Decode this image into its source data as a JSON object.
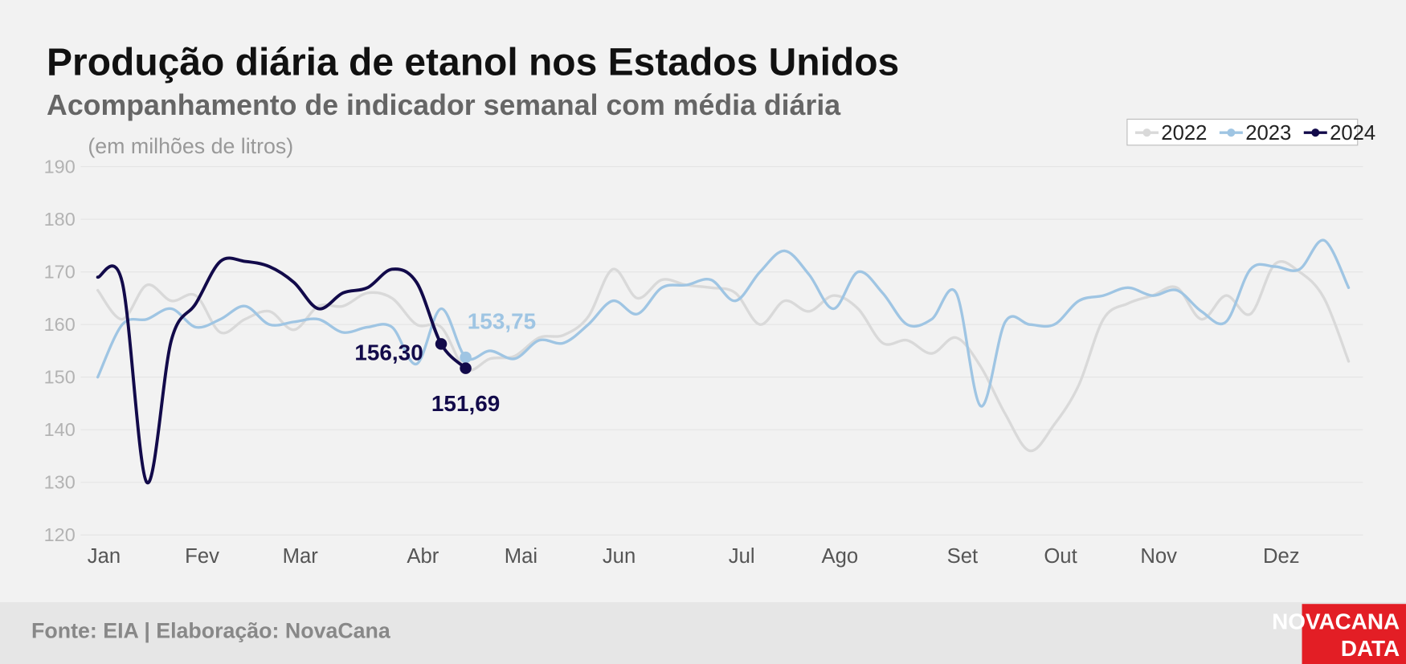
{
  "chart_data": {
    "type": "line",
    "title": "Produção diária de etanol nos Estados Unidos",
    "subtitle": "Acompanhamento de indicador semanal com média diária",
    "y_axis_label": "(em milhões de litros)",
    "source": "Fonte: EIA | Elaboração: NovaCana",
    "logo": [
      "NOVACANA",
      "DATA"
    ],
    "x": [
      1,
      2,
      3,
      4,
      5,
      6,
      7,
      8,
      9,
      10,
      11,
      12,
      13,
      14,
      15,
      16,
      17,
      18,
      19,
      20,
      21,
      22,
      23,
      24,
      25,
      26,
      27,
      28,
      29,
      30,
      31,
      32,
      33,
      34,
      35,
      36,
      37,
      38,
      39,
      40,
      41,
      42,
      43,
      44,
      45,
      46,
      47,
      48,
      49,
      50,
      51,
      52
    ],
    "xlim": [
      1,
      52
    ],
    "xticks": [
      {
        "value": 1,
        "label": "Jan"
      },
      {
        "value": 5,
        "label": "Fev"
      },
      {
        "value": 9,
        "label": "Mar"
      },
      {
        "value": 14,
        "label": "Abr"
      },
      {
        "value": 18,
        "label": "Mai"
      },
      {
        "value": 22,
        "label": "Jun"
      },
      {
        "value": 27,
        "label": "Jul"
      },
      {
        "value": 31,
        "label": "Ago"
      },
      {
        "value": 36,
        "label": "Set"
      },
      {
        "value": 40,
        "label": "Out"
      },
      {
        "value": 44,
        "label": "Nov"
      },
      {
        "value": 49,
        "label": "Dez"
      }
    ],
    "ylim": [
      120,
      190
    ],
    "yticks": [
      120,
      130,
      140,
      150,
      160,
      170,
      180,
      190
    ],
    "grid": true,
    "legend": "top-right",
    "series": [
      {
        "name": "2022",
        "color": "#d9d9d9",
        "values": [
          166.5,
          161,
          167.5,
          164.5,
          165.5,
          158.5,
          161,
          162.5,
          159,
          163.5,
          163.5,
          166,
          165,
          160,
          159.5,
          151.5,
          153.5,
          154,
          157.5,
          158,
          161.5,
          170.5,
          165,
          168.5,
          167.5,
          167,
          166,
          160,
          164.5,
          162.5,
          165.5,
          163,
          156.5,
          157,
          154.5,
          157.5,
          152,
          143,
          136,
          141,
          148.5,
          161,
          164,
          165.5,
          167,
          161,
          165.5,
          162,
          171.5,
          170,
          165,
          153
        ]
      },
      {
        "name": "2023",
        "color": "#9fc5e3",
        "values": [
          150,
          160,
          161,
          163,
          159.5,
          161,
          163.5,
          160,
          160.5,
          161,
          158.5,
          159.5,
          159.5,
          152.5,
          163,
          153.75,
          155,
          153.5,
          157,
          156.5,
          160,
          164.5,
          162,
          167,
          167.5,
          168.5,
          164.5,
          170,
          174,
          169.5,
          163,
          170,
          166,
          160,
          161,
          166,
          144.5,
          160.5,
          160,
          160,
          164.5,
          165.5,
          167,
          165.5,
          166.5,
          162.5,
          160.5,
          170.5,
          171,
          170.5,
          176,
          167
        ],
        "value_labels": [
          null,
          null,
          null,
          null,
          null,
          null,
          null,
          null,
          null,
          null,
          null,
          null,
          null,
          null,
          null,
          "153,75",
          null,
          null,
          null,
          null,
          null,
          null,
          null,
          null,
          null,
          null,
          null,
          null,
          null,
          null,
          null,
          null,
          null,
          null,
          null,
          null,
          null,
          null,
          null,
          null,
          null,
          null,
          null,
          null,
          null,
          null,
          null,
          null,
          null,
          null,
          null,
          null
        ]
      },
      {
        "name": "2024",
        "color": "#120a4a",
        "values": [
          169,
          168,
          130,
          157,
          164,
          172,
          172,
          171,
          168,
          163,
          166,
          167,
          170.5,
          168,
          156.3,
          151.69,
          null,
          null,
          null,
          null,
          null,
          null,
          null,
          null,
          null,
          null,
          null,
          null,
          null,
          null,
          null,
          null,
          null,
          null,
          null,
          null,
          null,
          null,
          null,
          null,
          null,
          null,
          null,
          null,
          null,
          null,
          null,
          null,
          null,
          null,
          null,
          null
        ],
        "value_labels": [
          null,
          null,
          null,
          null,
          null,
          null,
          null,
          null,
          null,
          null,
          null,
          null,
          null,
          null,
          "156,30",
          "151,69",
          null,
          null,
          null,
          null,
          null,
          null,
          null,
          null,
          null,
          null,
          null,
          null,
          null,
          null,
          null,
          null,
          null,
          null,
          null,
          null,
          null,
          null,
          null,
          null,
          null,
          null,
          null,
          null,
          null,
          null,
          null,
          null,
          null,
          null,
          null,
          null
        ]
      }
    ]
  }
}
